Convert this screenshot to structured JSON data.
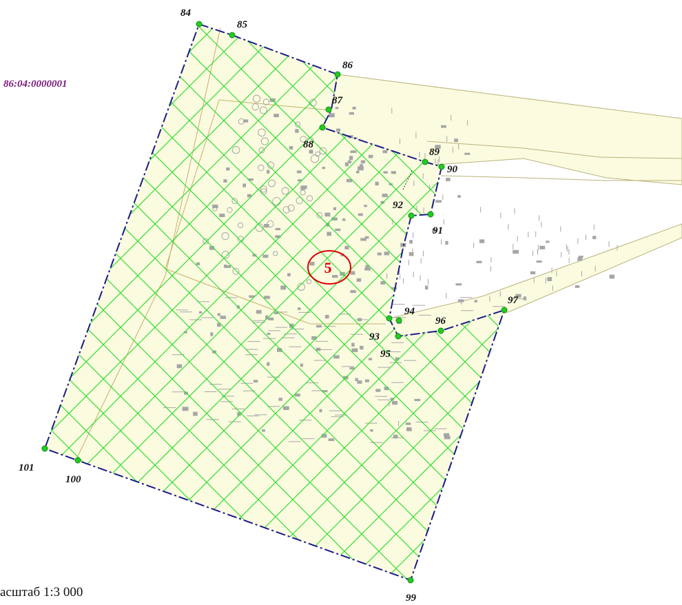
{
  "map": {
    "cadastral_quarter": "86:04:0000001",
    "zone_number": "5",
    "scale_text": "асштаб 1:3 000",
    "points": [
      {
        "id": "84",
        "label": "84"
      },
      {
        "id": "85",
        "label": "85"
      },
      {
        "id": "86",
        "label": "86"
      },
      {
        "id": "87",
        "label": "87"
      },
      {
        "id": "88",
        "label": "88"
      },
      {
        "id": "89",
        "label": "89"
      },
      {
        "id": "90",
        "label": "90"
      },
      {
        "id": "91",
        "label": "91"
      },
      {
        "id": "92",
        "label": "92"
      },
      {
        "id": "93",
        "label": "93"
      },
      {
        "id": "94",
        "label": "94"
      },
      {
        "id": "95",
        "label": "95"
      },
      {
        "id": "96",
        "label": "96"
      },
      {
        "id": "97",
        "label": "97"
      },
      {
        "id": "99",
        "label": "99"
      },
      {
        "id": "100",
        "label": "100"
      },
      {
        "id": "101",
        "label": "101"
      }
    ]
  },
  "colors": {
    "parcel_fill": "#fbfbe0",
    "hatch": "#33dd33",
    "boundary": "#1a1a8a",
    "point": "#22cc22",
    "cadastral_text": "#7a1a7a",
    "zone_circle": "#dd0000",
    "forest_symbols": "#a6a6a6",
    "road_outline": "#b9b27a"
  }
}
